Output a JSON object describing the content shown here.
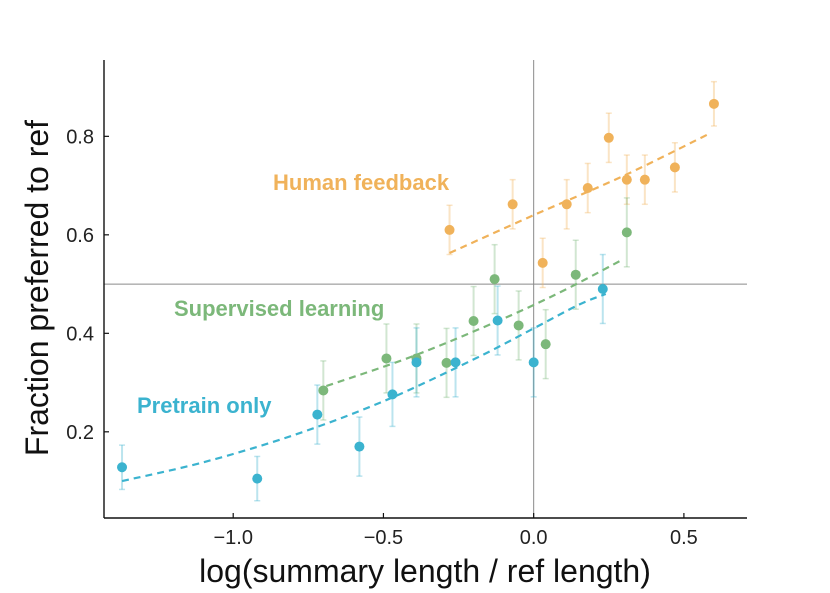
{
  "chart_data": {
    "type": "scatter",
    "title": "",
    "xlabel": "log(summary length / ref length)",
    "ylabel": "Fraction preferred to ref",
    "xlim": [
      -1.43,
      0.71
    ],
    "ylim": [
      0.025,
      0.955
    ],
    "xticks": [
      -1.0,
      -0.5,
      0.0,
      0.5
    ],
    "xtick_labels": [
      "−1.0",
      "−0.5",
      "0.0",
      "0.5"
    ],
    "yticks": [
      0.2,
      0.4,
      0.6,
      0.8
    ],
    "ytick_labels": [
      "0.2",
      "0.4",
      "0.6",
      "0.8"
    ],
    "reference_lines": {
      "x": 0.0,
      "y": 0.5
    },
    "grid": false,
    "legend": "inline labels",
    "series": [
      {
        "name": "Human feedback",
        "color": "#f0b25a",
        "points": [
          {
            "x": -0.28,
            "y": 0.61,
            "yerr": 0.05
          },
          {
            "x": -0.07,
            "y": 0.662,
            "yerr": 0.05
          },
          {
            "x": 0.03,
            "y": 0.543,
            "yerr": 0.05
          },
          {
            "x": 0.11,
            "y": 0.662,
            "yerr": 0.05
          },
          {
            "x": 0.18,
            "y": 0.695,
            "yerr": 0.05
          },
          {
            "x": 0.25,
            "y": 0.797,
            "yerr": 0.05
          },
          {
            "x": 0.31,
            "y": 0.712,
            "yerr": 0.05
          },
          {
            "x": 0.37,
            "y": 0.712,
            "yerr": 0.05
          },
          {
            "x": 0.47,
            "y": 0.737,
            "yerr": 0.05
          },
          {
            "x": 0.6,
            "y": 0.866,
            "yerr": 0.045
          }
        ],
        "fit": [
          [
            -0.28,
            0.563
          ],
          [
            0.0,
            0.64
          ],
          [
            0.3,
            0.72
          ],
          [
            0.58,
            0.804
          ]
        ]
      },
      {
        "name": "Supervised learning",
        "color": "#7cb87a",
        "points": [
          {
            "x": -0.7,
            "y": 0.284,
            "yerr": 0.06
          },
          {
            "x": -0.49,
            "y": 0.349,
            "yerr": 0.07
          },
          {
            "x": -0.39,
            "y": 0.349,
            "yerr": 0.07
          },
          {
            "x": -0.29,
            "y": 0.34,
            "yerr": 0.07
          },
          {
            "x": -0.2,
            "y": 0.425,
            "yerr": 0.07
          },
          {
            "x": -0.13,
            "y": 0.51,
            "yerr": 0.07
          },
          {
            "x": -0.05,
            "y": 0.416,
            "yerr": 0.07
          },
          {
            "x": 0.04,
            "y": 0.378,
            "yerr": 0.07
          },
          {
            "x": 0.14,
            "y": 0.519,
            "yerr": 0.07
          },
          {
            "x": 0.31,
            "y": 0.605,
            "yerr": 0.07
          }
        ],
        "fit": [
          [
            -0.69,
            0.293
          ],
          [
            -0.4,
            0.354
          ],
          [
            -0.1,
            0.43
          ],
          [
            0.1,
            0.487
          ],
          [
            0.3,
            0.551
          ]
        ]
      },
      {
        "name": "Pretrain only",
        "color": "#3bb3cf",
        "points": [
          {
            "x": -1.37,
            "y": 0.128,
            "yerr": 0.045
          },
          {
            "x": -0.92,
            "y": 0.105,
            "yerr": 0.045
          },
          {
            "x": -0.72,
            "y": 0.235,
            "yerr": 0.06
          },
          {
            "x": -0.58,
            "y": 0.17,
            "yerr": 0.06
          },
          {
            "x": -0.47,
            "y": 0.276,
            "yerr": 0.065
          },
          {
            "x": -0.39,
            "y": 0.341,
            "yerr": 0.07
          },
          {
            "x": -0.26,
            "y": 0.341,
            "yerr": 0.07
          },
          {
            "x": -0.12,
            "y": 0.426,
            "yerr": 0.07
          },
          {
            "x": 0.0,
            "y": 0.341,
            "yerr": 0.07
          },
          {
            "x": 0.23,
            "y": 0.49,
            "yerr": 0.07
          }
        ],
        "fit": [
          [
            -1.37,
            0.1
          ],
          [
            -1.1,
            0.138
          ],
          [
            -0.8,
            0.193
          ],
          [
            -0.5,
            0.262
          ],
          [
            -0.2,
            0.347
          ],
          [
            0.0,
            0.41
          ],
          [
            0.15,
            0.458
          ],
          [
            0.24,
            0.48
          ]
        ]
      }
    ]
  }
}
